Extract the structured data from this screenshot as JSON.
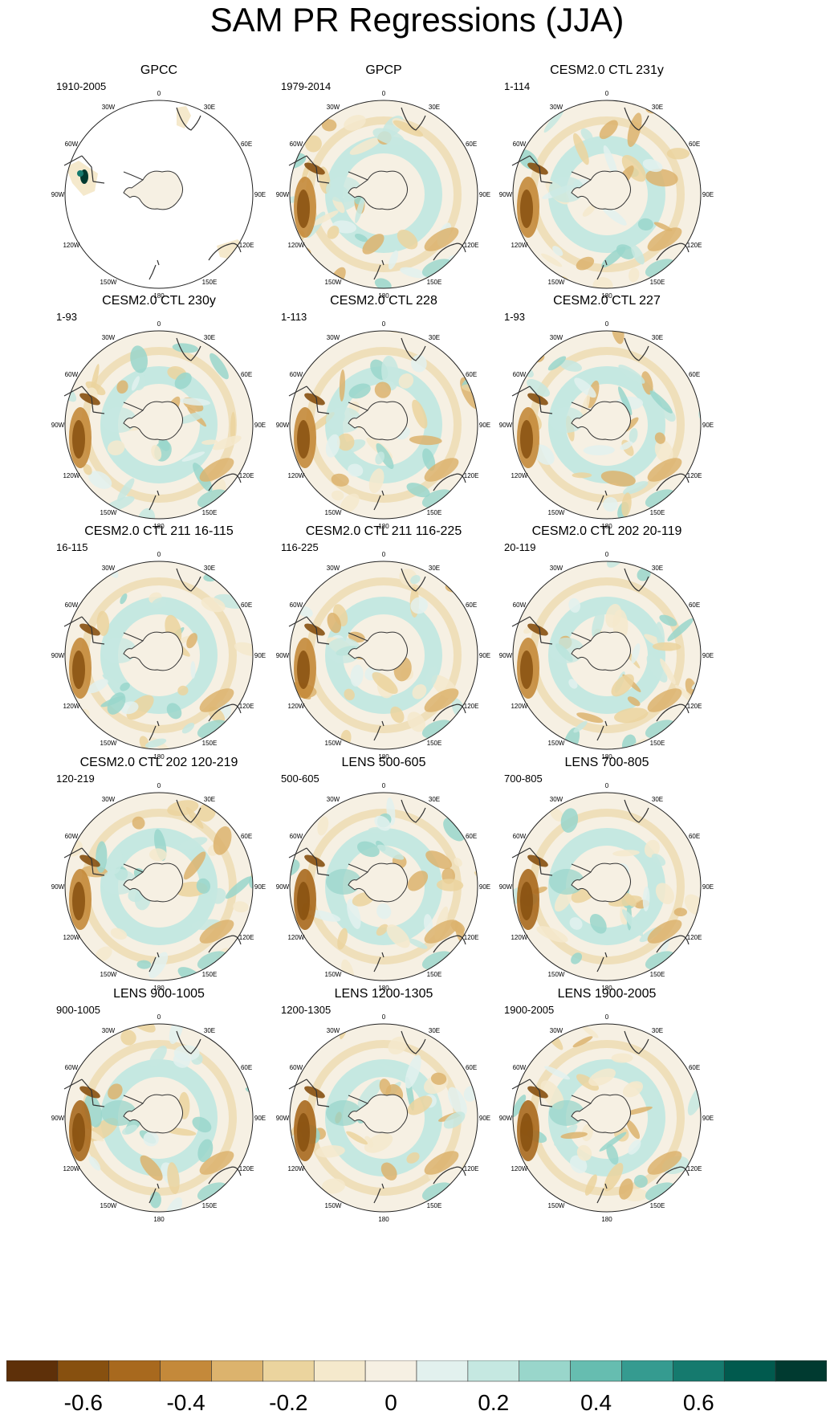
{
  "title": "SAM PR Regressions (JJA)",
  "map_labels": {
    "lon_top": "0",
    "lon_bottom": "180",
    "lon_30w": "30W",
    "lon_30e": "30E",
    "lon_60w": "60W",
    "lon_60e": "60E",
    "lon_90w": "90W",
    "lon_90e": "90E",
    "lon_120w": "120W",
    "lon_120e": "120E",
    "lon_150w": "150W",
    "lon_150e": "150E"
  },
  "panels": [
    {
      "title": "GPCC",
      "period": "1910-2005",
      "style": "gpcc"
    },
    {
      "title": "GPCP",
      "period": "1979-2014",
      "style": "obs"
    },
    {
      "title": "CESM2.0 CTL 231y",
      "period": "1-114",
      "style": "model"
    },
    {
      "title": "CESM2.0 CTL 230y",
      "period": "1-93",
      "style": "model"
    },
    {
      "title": "CESM2.0 CTL 228",
      "period": "1-113",
      "style": "model"
    },
    {
      "title": "CESM2.0 CTL 227",
      "period": "1-93",
      "style": "model"
    },
    {
      "title": "CESM2.0 CTL 211 16-115",
      "period": "16-115",
      "style": "model"
    },
    {
      "title": "CESM2.0 CTL 211 116-225",
      "period": "116-225",
      "style": "model"
    },
    {
      "title": "CESM2.0 CTL 202 20-119",
      "period": "20-119",
      "style": "model"
    },
    {
      "title": "CESM2.0 CTL 202 120-219",
      "period": "120-219",
      "style": "model"
    },
    {
      "title": "LENS 500-605",
      "period": "500-605",
      "style": "lens"
    },
    {
      "title": "LENS 700-805",
      "period": "700-805",
      "style": "lens"
    },
    {
      "title": "LENS 900-1005",
      "period": "900-1005",
      "style": "lens"
    },
    {
      "title": "LENS 1200-1305",
      "period": "1200-1305",
      "style": "lens"
    },
    {
      "title": "LENS 1900-2005",
      "period": "1900-2005",
      "style": "lens"
    }
  ],
  "colorbar": {
    "colors": [
      "#5e3009",
      "#87500f",
      "#a8691e",
      "#c4893a",
      "#dcb36d",
      "#ebd49e",
      "#f5e9cc",
      "#f6f0e3",
      "#e2f1ee",
      "#c5e8e1",
      "#99d6cb",
      "#66bdb0",
      "#359b90",
      "#157a6e",
      "#015a4e",
      "#003a30"
    ],
    "tick_labels": [
      "-0.6",
      "-0.4",
      "-0.2",
      "0",
      "0.2",
      "0.4",
      "0.6"
    ]
  }
}
